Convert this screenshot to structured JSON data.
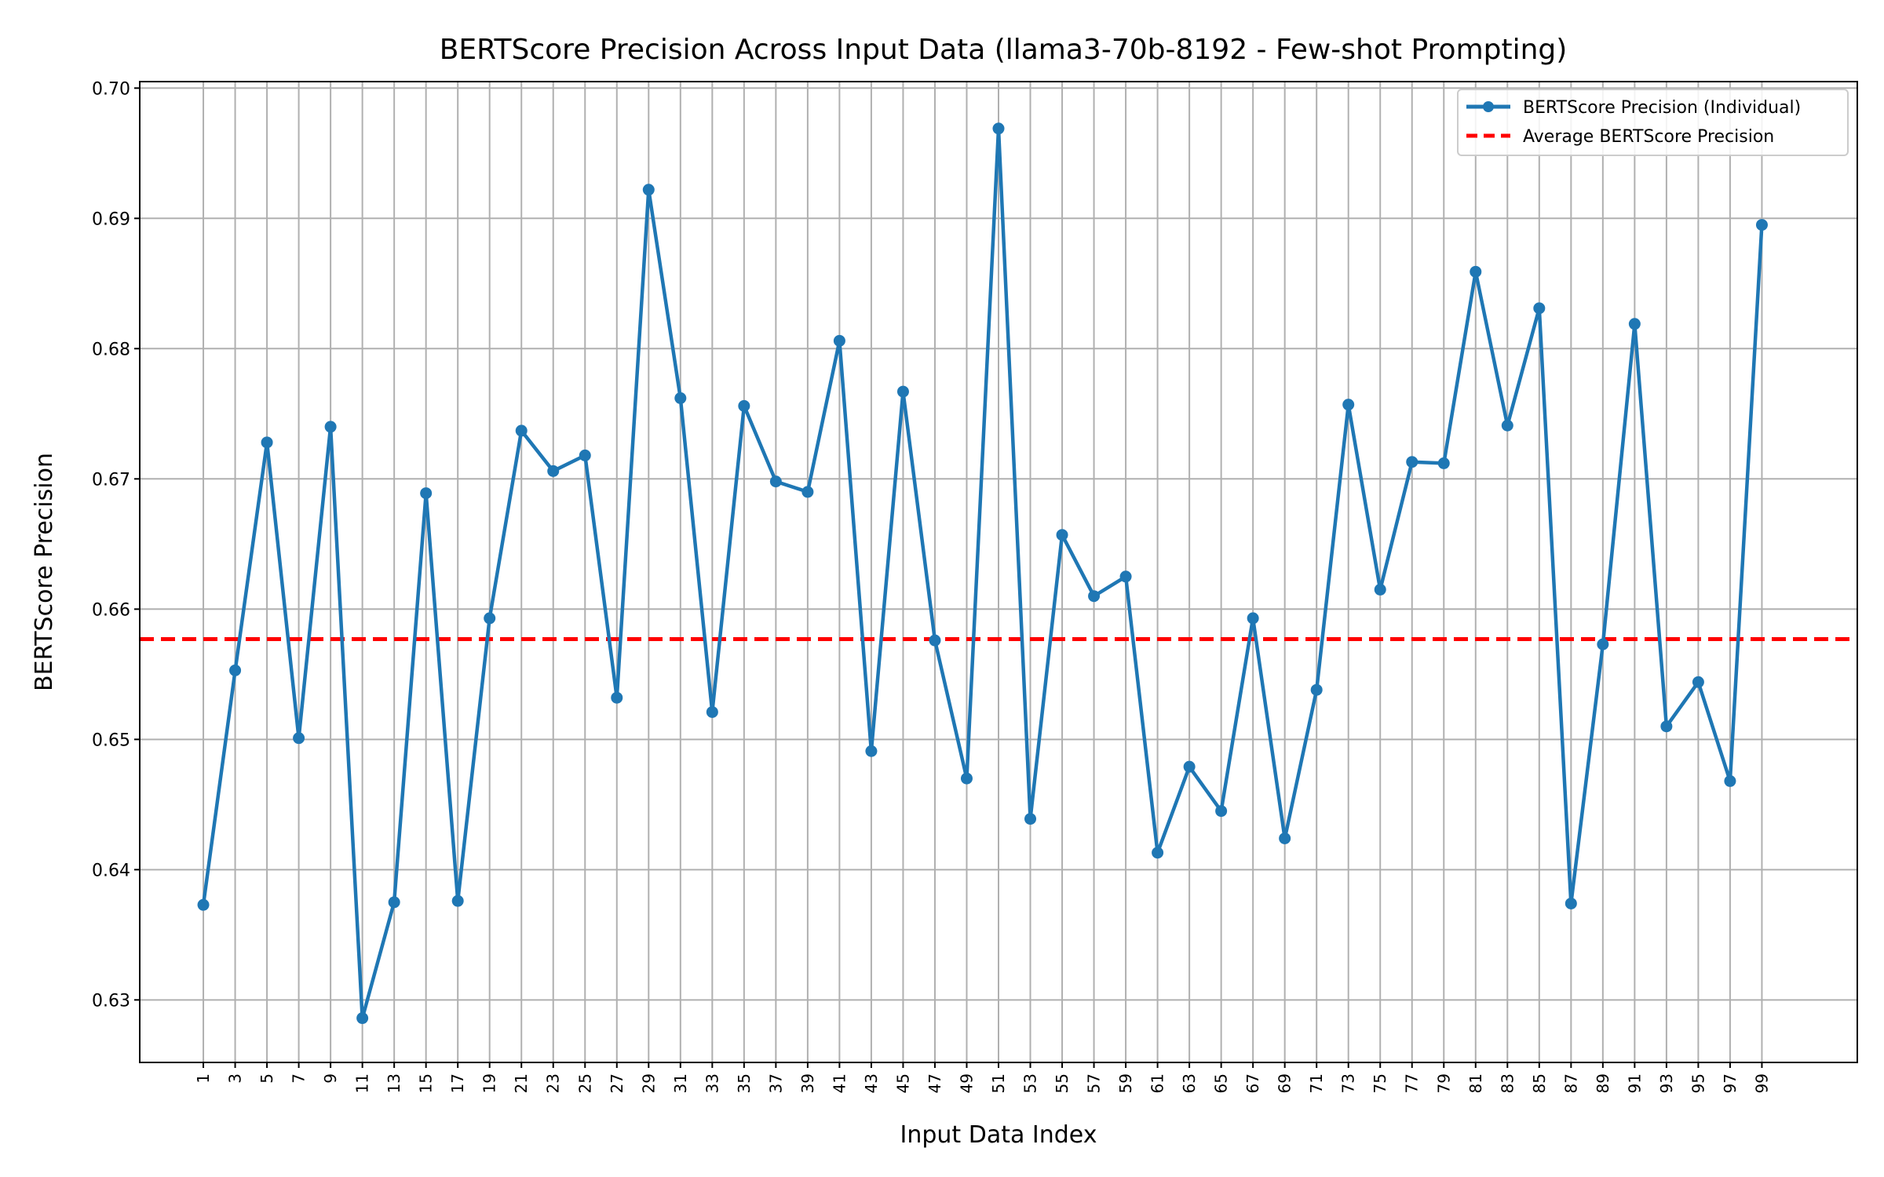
{
  "chart_data": {
    "type": "line",
    "title": "BERTScore Precision Across Input Data (llama3-70b-8192 - Few-shot Prompting)",
    "xlabel": "Input Data Index",
    "ylabel": "BERTScore Precision",
    "xlim": [
      -3,
      105
    ],
    "ylim": [
      0.6252,
      0.7005
    ],
    "grid": true,
    "legend_position": "top-right",
    "x_ticks": [
      1,
      3,
      5,
      7,
      9,
      11,
      13,
      15,
      17,
      19,
      21,
      23,
      25,
      27,
      29,
      31,
      33,
      35,
      37,
      39,
      41,
      43,
      45,
      47,
      49,
      51,
      53,
      55,
      57,
      59,
      61,
      63,
      65,
      67,
      69,
      71,
      73,
      75,
      77,
      79,
      81,
      83,
      85,
      87,
      89,
      91,
      93,
      95,
      97,
      99
    ],
    "y_ticks": [
      0.63,
      0.64,
      0.65,
      0.66,
      0.67,
      0.68,
      0.69,
      0.7
    ],
    "y_tick_labels": [
      "0.63",
      "0.64",
      "0.65",
      "0.66",
      "0.67",
      "0.68",
      "0.69",
      "0.70"
    ],
    "series": [
      {
        "name": "BERTScore Precision (Individual)",
        "color": "#1f77b4",
        "style": "line-with-markers",
        "x": [
          1,
          3,
          5,
          7,
          9,
          11,
          13,
          15,
          17,
          19,
          21,
          23,
          25,
          27,
          29,
          31,
          33,
          35,
          37,
          39,
          41,
          43,
          45,
          47,
          49,
          51,
          53,
          55,
          57,
          59,
          61,
          63,
          65,
          67,
          69,
          71,
          73,
          75,
          77,
          79,
          81,
          83,
          85,
          87,
          89,
          91,
          93,
          95,
          97,
          99
        ],
        "values": [
          0.6373,
          0.6553,
          0.6728,
          0.6501,
          0.674,
          0.6286,
          0.6375,
          0.6689,
          0.6376,
          0.6593,
          0.6737,
          0.6706,
          0.6718,
          0.6532,
          0.6922,
          0.6762,
          0.6521,
          0.6756,
          0.6698,
          0.669,
          0.6806,
          0.6491,
          0.6767,
          0.6576,
          0.647,
          0.6969,
          0.6439,
          0.6657,
          0.661,
          0.6625,
          0.6413,
          0.6479,
          0.6445,
          0.6593,
          0.6424,
          0.6538,
          0.6757,
          0.6615,
          0.6713,
          0.6712,
          0.6859,
          0.6741,
          0.6831,
          0.6374,
          0.6573,
          0.6819,
          0.651,
          0.6544,
          0.6468,
          0.6895
        ]
      },
      {
        "name": "Average BERTScore Precision",
        "color": "#ff0000",
        "style": "dashed",
        "value": 0.6577
      }
    ]
  }
}
